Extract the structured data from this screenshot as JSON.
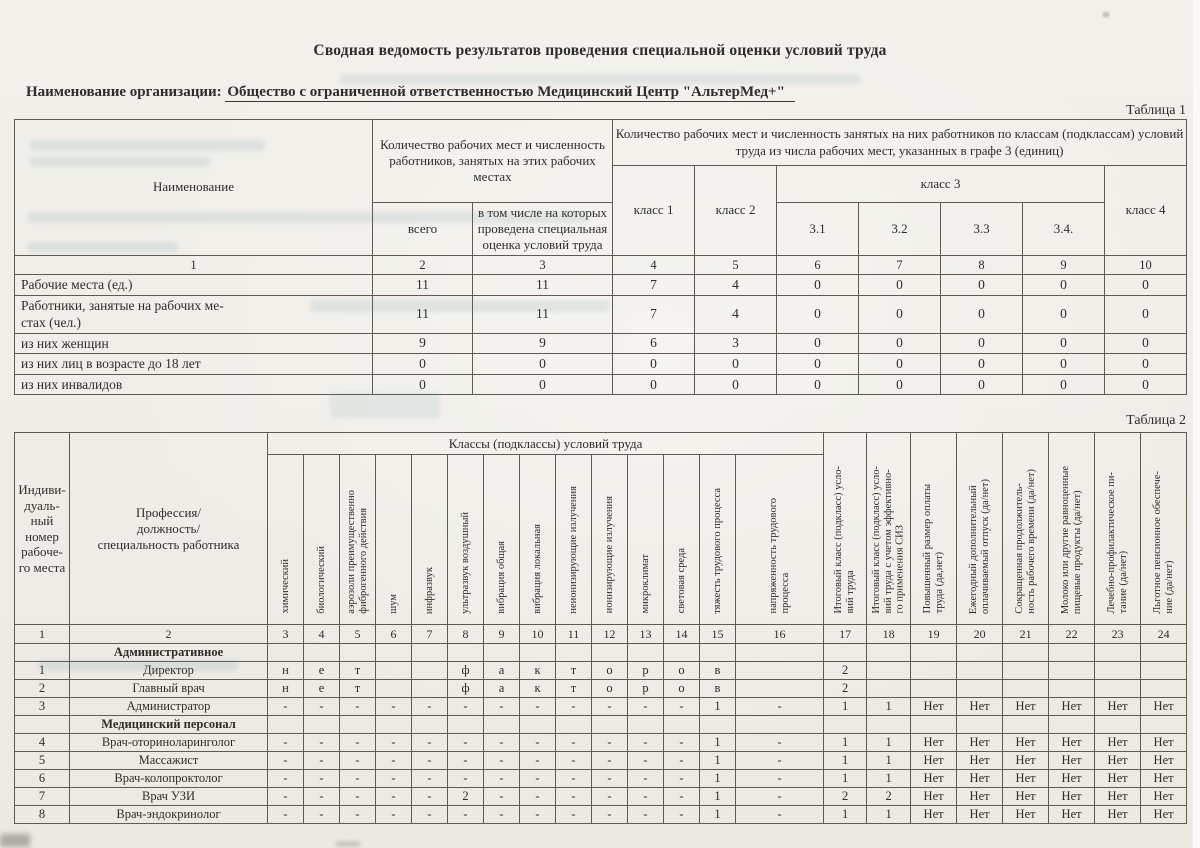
{
  "colors": {
    "paper": "#f1efe9",
    "ink": "#2f2d2a",
    "table_border": "#5f5a54",
    "bleed_tint": "#488692"
  },
  "page": {
    "title": "Сводная ведомость результатов проведения специальной оценки условий труда",
    "org_label": "Наименование организации:",
    "org_value": "Общество с ограниченной ответственностью Медицинский Центр \"АльтерМед+\"",
    "table1_caption": "Таблица 1",
    "table2_caption": "Таблица 2"
  },
  "table1": {
    "header": {
      "name": "Наименование",
      "group_places": "Количество рабочих мест и численность работников, занятых на этих рабочих местах",
      "group_classes": "Количество рабочих мест и численность занятых на них работников по классам (подклассам) условий труда из числа рабочих мест, указанных в графе 3 (единиц)",
      "total": "всего",
      "assessed": "в том числе на которых проведена специальная оценка условий труда",
      "class1": "класс 1",
      "class2": "класс 2",
      "class3": "класс 3",
      "class4": "класс 4",
      "sub3": [
        "3.1",
        "3.2",
        "3.3",
        "3.4."
      ]
    },
    "col_numbers": [
      "1",
      "2",
      "3",
      "4",
      "5",
      "6",
      "7",
      "8",
      "9",
      "10"
    ],
    "rows": [
      {
        "label": "Рабочие места (ед.)",
        "values": [
          "11",
          "11",
          "7",
          "4",
          "0",
          "0",
          "0",
          "0",
          "0"
        ]
      },
      {
        "label": "Работники, занятые на рабочих ме-\nстах (чел.)",
        "values": [
          "11",
          "11",
          "7",
          "4",
          "0",
          "0",
          "0",
          "0",
          "0"
        ]
      },
      {
        "label": "из них женщин",
        "values": [
          "9",
          "9",
          "6",
          "3",
          "0",
          "0",
          "0",
          "0",
          "0"
        ]
      },
      {
        "label": "из них лиц в возрасте до 18 лет",
        "values": [
          "0",
          "0",
          "0",
          "0",
          "0",
          "0",
          "0",
          "0",
          "0"
        ]
      },
      {
        "label": "из них инвалидов",
        "values": [
          "0",
          "0",
          "0",
          "0",
          "0",
          "0",
          "0",
          "0",
          "0"
        ]
      }
    ]
  },
  "table2": {
    "header": {
      "col1": "Индиви-\nдуаль-\nный\nномер\nрабоче-\nго места",
      "col2": "Профессия/\nдолжность/\nспециальность работника",
      "classes_group": "Классы (подклассы) условий труда",
      "factors": [
        "химический",
        "биологический",
        "аэрозоли преимущественно\nфиброгенного действия",
        "шум",
        "инфразвук",
        "ультразвук воздушный",
        "вибрация общая",
        "вибрация локальная",
        "неионизирующие излучения",
        "ионизирующие излучения",
        "микроклимат",
        "световая среда",
        "тяжесть трудового процесса",
        "напряженность трудового\nпроцесса"
      ],
      "result_cols": [
        "Итоговый класс (подкласс) усло-\nвий труда",
        "Итоговый класс (подкласс) усло-\nвий труда с учетом эффективно-\nго применения СИЗ",
        "Повышенный размер оплаты\nтруда (да,нет)",
        "Ежегодный дополнительный\nоплачиваемый отпуск (да/нет)",
        "Сокращенная продолжитель-\nность рабочего времени (да/нет)",
        "Молоко или другие равноценные\nпищевые продукты (да/нет)",
        "Лечебно-профилактическое пи-\nтание  (да/нет)",
        "Льготное пенсионное обеспече-\nние (да/нет)"
      ]
    },
    "col_numbers": [
      "1",
      "2",
      "3",
      "4",
      "5",
      "6",
      "7",
      "8",
      "9",
      "10",
      "11",
      "12",
      "13",
      "14",
      "15",
      "16",
      "17",
      "18",
      "19",
      "20",
      "21",
      "22",
      "23",
      "24"
    ],
    "sections": [
      {
        "title": "Административное",
        "rows": [
          {
            "cells": [
              "1",
              "Директор",
              "н",
              "е",
              "т",
              "",
              "",
              "ф",
              "а",
              "к",
              "т",
              "о",
              "р",
              "о",
              "в",
              "",
              "2",
              "",
              "",
              "",
              "",
              "",
              "",
              ""
            ]
          },
          {
            "cells": [
              "2",
              "Главный врач",
              "н",
              "е",
              "т",
              "",
              "",
              "ф",
              "а",
              "к",
              "т",
              "о",
              "р",
              "о",
              "в",
              "",
              "2",
              "",
              "",
              "",
              "",
              "",
              "",
              ""
            ]
          },
          {
            "cells": [
              "3",
              "Администратор",
              "-",
              "-",
              "-",
              "-",
              "-",
              "-",
              "-",
              "-",
              "-",
              "-",
              "-",
              "-",
              "1",
              "-",
              "1",
              "1",
              "Нет",
              "Нет",
              "Нет",
              "Нет",
              "Нет",
              "Нет"
            ]
          }
        ]
      },
      {
        "title": "Медицинский персонал",
        "rows": [
          {
            "cells": [
              "4",
              "Врач-оториноларинголог",
              "-",
              "-",
              "-",
              "-",
              "-",
              "-",
              "-",
              "-",
              "-",
              "-",
              "-",
              "-",
              "1",
              "-",
              "1",
              "1",
              "Нет",
              "Нет",
              "Нет",
              "Нет",
              "Нет",
              "Нет"
            ]
          },
          {
            "cells": [
              "5",
              "Массажист",
              "-",
              "-",
              "-",
              "-",
              "-",
              "-",
              "-",
              "-",
              "-",
              "-",
              "-",
              "-",
              "1",
              "-",
              "1",
              "1",
              "Нет",
              "Нет",
              "Нет",
              "Нет",
              "Нет",
              "Нет"
            ]
          },
          {
            "cells": [
              "6",
              "Врач-колопроктолог",
              "-",
              "-",
              "-",
              "-",
              "-",
              "-",
              "-",
              "-",
              "-",
              "-",
              "-",
              "-",
              "1",
              "-",
              "1",
              "1",
              "Нет",
              "Нет",
              "Нет",
              "Нет",
              "Нет",
              "Нет"
            ]
          },
          {
            "cells": [
              "7",
              "Врач УЗИ",
              "-",
              "-",
              "-",
              "-",
              "-",
              "2",
              "-",
              "-",
              "-",
              "-",
              "-",
              "-",
              "1",
              "-",
              "2",
              "2",
              "Нет",
              "Нет",
              "Нет",
              "Нет",
              "Нет",
              "Нет"
            ]
          },
          {
            "cells": [
              "8",
              "Врач-эндокринолог",
              "-",
              "-",
              "-",
              "-",
              "-",
              "-",
              "-",
              "-",
              "-",
              "-",
              "-",
              "-",
              "1",
              "-",
              "1",
              "1",
              "Нет",
              "Нет",
              "Нет",
              "Нет",
              "Нет",
              "Нет"
            ]
          }
        ]
      }
    ]
  }
}
